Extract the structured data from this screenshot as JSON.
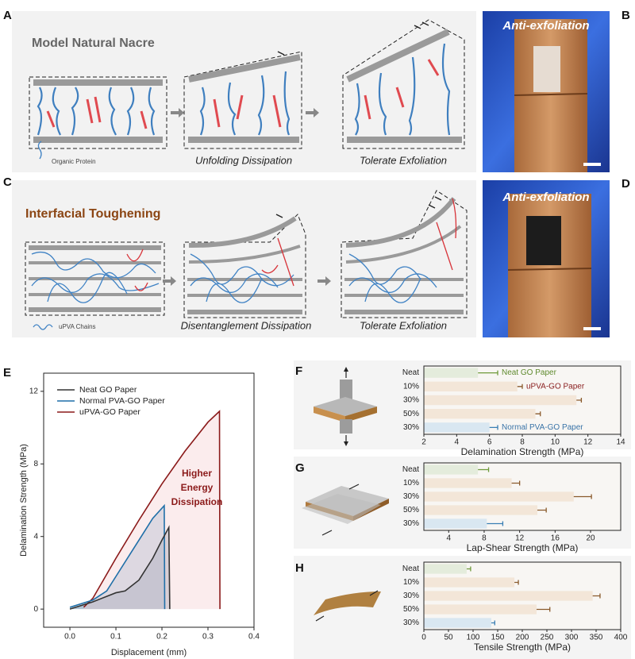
{
  "panels": {
    "A": {
      "letter": "A",
      "title": "Model Natural Nacre",
      "legend": "Organic Protein",
      "steps": [
        "Unfolding Dissipation",
        "Tolerate Exfoliation"
      ]
    },
    "B": {
      "letter": "B",
      "label": "Anti-exfoliation"
    },
    "C": {
      "letter": "C",
      "title": "Interfacial Toughening",
      "legend": "uPVA Chains",
      "steps": [
        "Disentanglement Dissipation",
        "Tolerate Exfoliation"
      ]
    },
    "D": {
      "letter": "D",
      "label": "Anti-exfoliation"
    }
  },
  "chart_data": [
    {
      "type": "line",
      "letter": "E",
      "xlabel": "Displacement (mm)",
      "ylabel": "Delamination Strength (MPa)",
      "xlim": [
        -0.057,
        0.4
      ],
      "ylim": [
        -1,
        13
      ],
      "xticks": [
        {
          "value": 0,
          "label": "0.0"
        },
        0.1,
        0.2,
        0.3,
        0.4
      ],
      "yticks": [
        0,
        4,
        8,
        12
      ],
      "annotation": [
        "Higher",
        "Energy",
        "Dissipation"
      ],
      "series": [
        {
          "name": "Neat GO Paper",
          "color": "#333333",
          "x": [
            0,
            0.05,
            0.1,
            0.12,
            0.15,
            0.18,
            0.2,
            0.215,
            0.217
          ],
          "values": [
            0,
            0.4,
            0.9,
            1.0,
            1.6,
            2.8,
            3.8,
            4.5,
            0
          ]
        },
        {
          "name": "Normal PVA-GO Paper",
          "color": "#1f6fa8",
          "x": [
            0,
            0.05,
            0.08,
            0.1,
            0.13,
            0.16,
            0.18,
            0.205,
            0.206
          ],
          "values": [
            0.1,
            0.5,
            1.0,
            1.8,
            3.0,
            4.2,
            5.0,
            5.7,
            0
          ]
        },
        {
          "name": "uPVA-GO Paper",
          "color": "#8b1a1a",
          "x": [
            0.03,
            0.05,
            0.1,
            0.15,
            0.2,
            0.25,
            0.3,
            0.325,
            0.326
          ],
          "values": [
            0.1,
            0.6,
            2.8,
            4.9,
            6.9,
            8.7,
            10.3,
            10.9,
            0
          ]
        }
      ]
    },
    {
      "type": "bar",
      "letter": "F",
      "xlabel": "Delamination Strength (MPa)",
      "categories": [
        "Neat",
        "10%",
        "30%",
        "50%",
        "30%"
      ],
      "values": [
        5.3,
        7.7,
        11.3,
        8.8,
        6.0
      ],
      "errors": [
        1.2,
        0.3,
        0.3,
        0.3,
        0.5
      ],
      "colors": [
        "#e4ecdc",
        "#f3e6d8",
        "#f3e6d8",
        "#f3e6d8",
        "#d9e7f1"
      ],
      "error_colors": [
        "#6e9a3a",
        "#8a5a2b",
        "#8a5a2b",
        "#8a5a2b",
        "#3a7fb4"
      ],
      "annotations": [
        "Neat GO Paper",
        "uPVA-GO Paper",
        "Normal PVA-GO Paper"
      ],
      "annotation_colors": [
        "#5f8a2e",
        "#8b2020",
        "#3a74a8"
      ],
      "xlim": [
        2,
        14
      ],
      "xticks": [
        2,
        4,
        6,
        8,
        10,
        12,
        14
      ]
    },
    {
      "type": "bar",
      "letter": "G",
      "xlabel": "Lap-Shear Strength (MPa)",
      "categories": [
        "Neat",
        "10%",
        "30%",
        "50%",
        "30%"
      ],
      "values": [
        7.3,
        11.1,
        18.1,
        14.0,
        8.3
      ],
      "errors": [
        1.2,
        0.9,
        2.0,
        1.0,
        1.8
      ],
      "colors": [
        "#e4ecdc",
        "#f3e6d8",
        "#f3e6d8",
        "#f3e6d8",
        "#d9e7f1"
      ],
      "error_colors": [
        "#6e9a3a",
        "#8a5a2b",
        "#8a5a2b",
        "#8a5a2b",
        "#3a7fb4"
      ],
      "xlim": [
        1.2,
        23.4
      ],
      "xticks": [
        4,
        8,
        12,
        16,
        20
      ]
    },
    {
      "type": "bar",
      "letter": "H",
      "xlabel": "Tensile Strength (MPa)",
      "categories": [
        "Neat",
        "10%",
        "30%",
        "50%",
        "30%"
      ],
      "values": [
        87,
        184,
        343,
        229,
        137
      ],
      "errors": [
        8,
        8,
        15,
        27,
        7
      ],
      "colors": [
        "#e4ecdc",
        "#f3e6d8",
        "#f3e6d8",
        "#f3e6d8",
        "#d9e7f1"
      ],
      "error_colors": [
        "#6e9a3a",
        "#8a5a2b",
        "#8a5a2b",
        "#8a5a2b",
        "#3a7fb4"
      ],
      "xlim": [
        0,
        400
      ],
      "xticks": [
        0,
        50,
        100,
        150,
        200,
        250,
        300,
        350,
        400
      ]
    }
  ]
}
